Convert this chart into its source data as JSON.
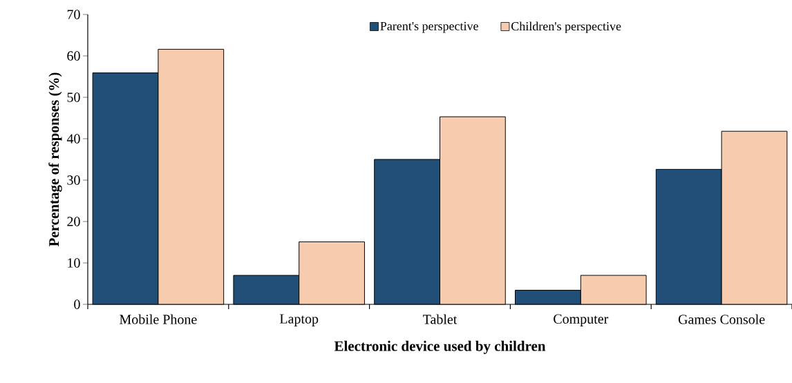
{
  "chart_data": {
    "type": "bar",
    "xlabel": "Electronic device used by children",
    "ylabel": "Percentage of responses (%)",
    "categories": [
      "Mobile Phone",
      "Laptop",
      "Tablet",
      "Computer",
      "Games Console"
    ],
    "series": [
      {
        "name": "Parent's perspective",
        "color": "#214f78",
        "values": [
          55.9,
          7.0,
          35.0,
          3.4,
          32.6
        ]
      },
      {
        "name": "Children's perspective",
        "color": "#f7cbad",
        "values": [
          61.6,
          15.1,
          45.3,
          7.0,
          41.8
        ]
      }
    ],
    "ylim": [
      0,
      70
    ],
    "yticks": [
      0,
      10,
      20,
      30,
      40,
      50,
      60,
      70
    ],
    "grid": false,
    "legend": "top"
  }
}
